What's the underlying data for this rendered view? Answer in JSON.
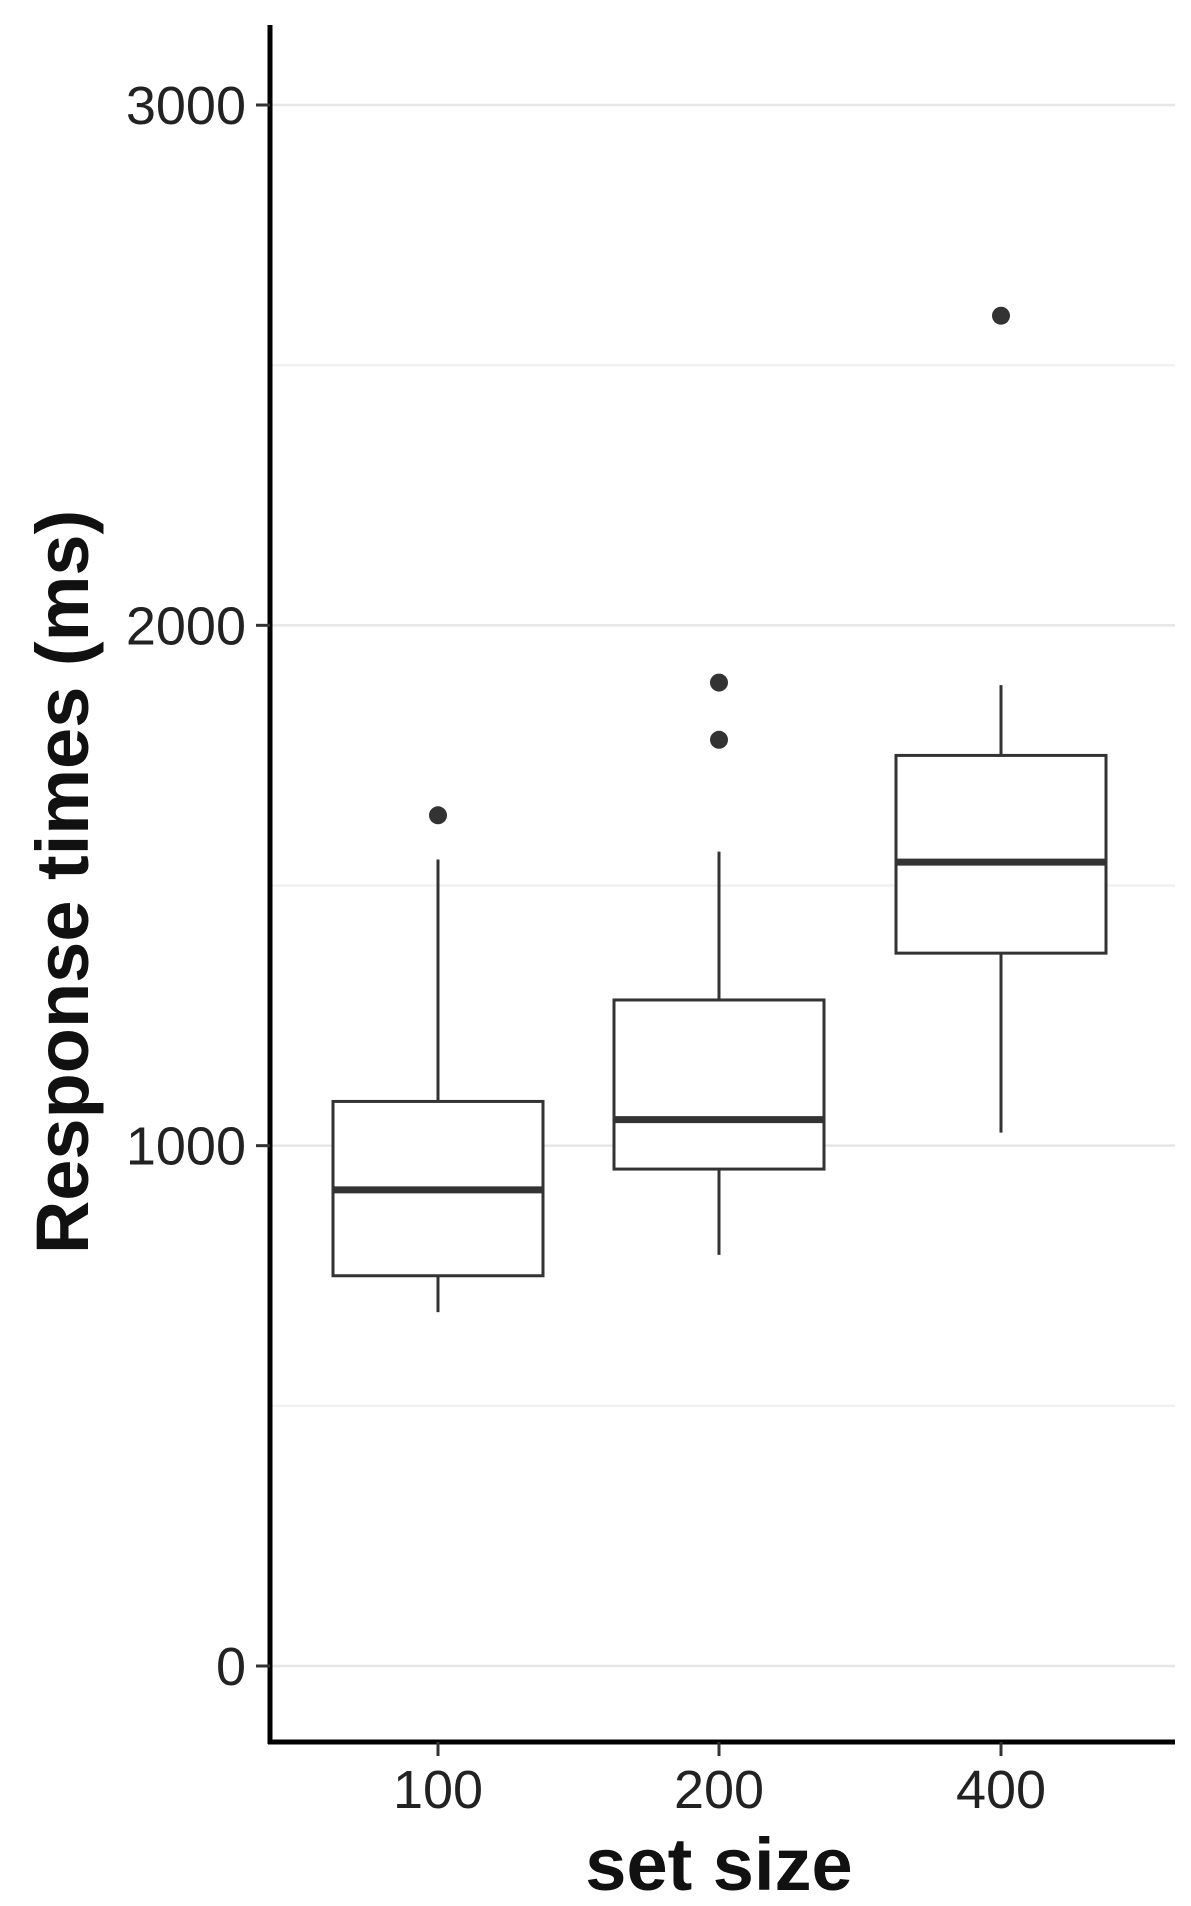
{
  "chart_data": {
    "type": "box",
    "xlabel": "set size",
    "ylabel": "Response times (ms)",
    "ylim": [
      -150,
      3150
    ],
    "yticks": [
      0,
      1000,
      2000,
      3000
    ],
    "ytick_labels": [
      "0",
      "1000",
      "2000",
      "3000"
    ],
    "minor_gridlines": [
      500,
      1500,
      2500
    ],
    "grid": "horizontal",
    "categories": [
      "100",
      "200",
      "400"
    ],
    "boxes": [
      {
        "category": "100",
        "whisker_low": 680,
        "q1": 750,
        "median": 915,
        "q3": 1085,
        "whisker_high": 1550,
        "outliers": [
          1635
        ]
      },
      {
        "category": "200",
        "whisker_low": 790,
        "q1": 955,
        "median": 1050,
        "q3": 1280,
        "whisker_high": 1565,
        "outliers": [
          1780,
          1890
        ]
      },
      {
        "category": "400",
        "whisker_low": 1025,
        "q1": 1370,
        "median": 1545,
        "q3": 1750,
        "whisker_high": 1885,
        "outliers": [
          2595
        ]
      }
    ],
    "colors": {
      "box_stroke": "#333333",
      "median": "#333333",
      "outlier": "#333333",
      "gridline": "#e6e6e6",
      "axis": "#000000"
    }
  }
}
